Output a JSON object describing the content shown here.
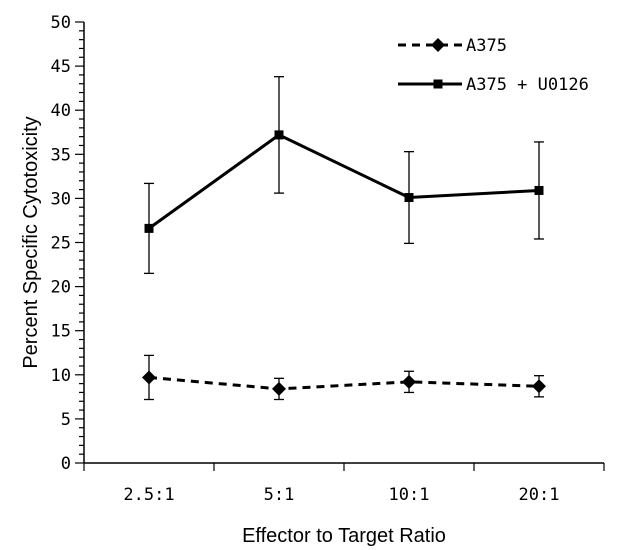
{
  "chart_data": {
    "type": "line",
    "title": "",
    "xlabel": "Effector to Target Ratio",
    "ylabel": "Percent Specific Cytotoxicity",
    "categories": [
      "2.5:1",
      "5:1",
      "10:1",
      "20:1"
    ],
    "ylim": [
      0,
      50
    ],
    "y_ticks": [
      "0",
      "5",
      "10",
      "15",
      "20",
      "25",
      "30",
      "35",
      "40",
      "45",
      "50"
    ],
    "grid": false,
    "legend_position": "top-right",
    "series": [
      {
        "name": "A375",
        "values": [
          9.7,
          8.4,
          9.2,
          8.7
        ],
        "error": [
          2.5,
          1.2,
          1.2,
          1.2
        ],
        "line_style": "dashed",
        "marker": "diamond",
        "color": "#000000"
      },
      {
        "name": "A375 + U0126",
        "values": [
          26.6,
          37.2,
          30.1,
          30.9
        ],
        "error": [
          5.1,
          6.6,
          5.2,
          5.5
        ],
        "line_style": "solid",
        "marker": "square",
        "color": "#000000"
      }
    ]
  }
}
